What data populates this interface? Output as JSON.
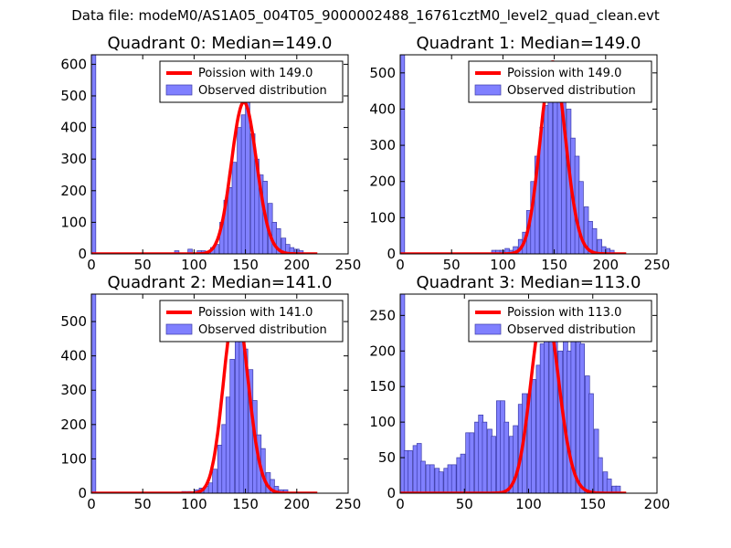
{
  "figure_title": "Data file: modeM0/AS1A05_004T05_9000002488_16761cztM0_level2_quad_clean.evt",
  "colors": {
    "bar_fill": "#8080ff",
    "bar_edge": "#3a3aa8",
    "poisson_line": "#ff0000",
    "axes": "#000000"
  },
  "chart_data": [
    {
      "type": "bar",
      "title": "Quadrant 0: Median=149.0",
      "xlim": [
        0,
        250
      ],
      "ylim": [
        0,
        630
      ],
      "xticks": [
        0,
        50,
        100,
        150,
        200,
        250
      ],
      "yticks": [
        0,
        100,
        200,
        300,
        400,
        500,
        600
      ],
      "bin_width": 4.3,
      "legend": [
        "Poission with 149.0",
        "Observed distribution"
      ],
      "median": 149.0,
      "peak": 480,
      "bins": [
        [
          0,
          630
        ],
        [
          81,
          10
        ],
        [
          94,
          15
        ],
        [
          103,
          10
        ],
        [
          107,
          10
        ],
        [
          112,
          5
        ],
        [
          116,
          20
        ],
        [
          120,
          30
        ],
        [
          125,
          100
        ],
        [
          129,
          170
        ],
        [
          133,
          210
        ],
        [
          137,
          290
        ],
        [
          142,
          400
        ],
        [
          146,
          440
        ],
        [
          150,
          480
        ],
        [
          155,
          380
        ],
        [
          159,
          300
        ],
        [
          163,
          250
        ],
        [
          167,
          230
        ],
        [
          172,
          160
        ],
        [
          176,
          100
        ],
        [
          180,
          80
        ],
        [
          185,
          50
        ],
        [
          189,
          30
        ],
        [
          193,
          20
        ],
        [
          198,
          15
        ],
        [
          202,
          10
        ]
      ]
    },
    {
      "type": "bar",
      "title": "Quadrant 1: Median=149.0",
      "xlim": [
        0,
        250
      ],
      "ylim": [
        0,
        550
      ],
      "xticks": [
        0,
        50,
        100,
        150,
        200,
        250
      ],
      "yticks": [
        0,
        100,
        200,
        300,
        400,
        500
      ],
      "bin_width": 4.3,
      "legend": [
        "Poission with 149.0",
        "Observed distribution"
      ],
      "median": 149.0,
      "peak": 530,
      "bins": [
        [
          0,
          550
        ],
        [
          89,
          10
        ],
        [
          93,
          10
        ],
        [
          97,
          10
        ],
        [
          102,
          15
        ],
        [
          106,
          10
        ],
        [
          110,
          20
        ],
        [
          115,
          40
        ],
        [
          119,
          60
        ],
        [
          123,
          120
        ],
        [
          127,
          200
        ],
        [
          131,
          270
        ],
        [
          136,
          350
        ],
        [
          140,
          410
        ],
        [
          144,
          460
        ],
        [
          149,
          500
        ],
        [
          153,
          460
        ],
        [
          157,
          420
        ],
        [
          162,
          400
        ],
        [
          166,
          320
        ],
        [
          170,
          270
        ],
        [
          174,
          200
        ],
        [
          179,
          130
        ],
        [
          183,
          90
        ],
        [
          187,
          70
        ],
        [
          192,
          40
        ],
        [
          196,
          20
        ],
        [
          200,
          15
        ],
        [
          204,
          10
        ]
      ]
    },
    {
      "type": "bar",
      "title": "Quadrant 2: Median=141.0",
      "xlim": [
        0,
        250
      ],
      "ylim": [
        0,
        580
      ],
      "xticks": [
        0,
        50,
        100,
        150,
        200,
        250
      ],
      "yticks": [
        0,
        100,
        200,
        300,
        400,
        500
      ],
      "bin_width": 4.3,
      "legend": [
        "Poission with 141.0",
        "Observed distribution"
      ],
      "median": 141.0,
      "peak": 545,
      "bins": [
        [
          0,
          580
        ],
        [
          88,
          5
        ],
        [
          93,
          5
        ],
        [
          101,
          10
        ],
        [
          105,
          15
        ],
        [
          110,
          20
        ],
        [
          114,
          30
        ],
        [
          118,
          70
        ],
        [
          123,
          140
        ],
        [
          127,
          200
        ],
        [
          131,
          280
        ],
        [
          135,
          390
        ],
        [
          140,
          470
        ],
        [
          144,
          500
        ],
        [
          148,
          420
        ],
        [
          153,
          360
        ],
        [
          157,
          270
        ],
        [
          161,
          170
        ],
        [
          165,
          130
        ],
        [
          170,
          60
        ],
        [
          174,
          40
        ],
        [
          178,
          20
        ],
        [
          182,
          10
        ],
        [
          187,
          10
        ]
      ]
    },
    {
      "type": "bar",
      "title": "Quadrant 3: Median=113.0",
      "xlim": [
        0,
        200
      ],
      "ylim": [
        0,
        280
      ],
      "xticks": [
        0,
        50,
        100,
        150,
        200
      ],
      "yticks": [
        0,
        50,
        100,
        150,
        200,
        250
      ],
      "bin_width": 3.5,
      "legend": [
        "Poission with 113.0",
        "Observed distribution"
      ],
      "median": 113.0,
      "peak": 265,
      "bins": [
        [
          0,
          280
        ],
        [
          3,
          60
        ],
        [
          6,
          60
        ],
        [
          10,
          67
        ],
        [
          13,
          70
        ],
        [
          16,
          45
        ],
        [
          20,
          40
        ],
        [
          23,
          40
        ],
        [
          27,
          35
        ],
        [
          30,
          30
        ],
        [
          34,
          35
        ],
        [
          37,
          40
        ],
        [
          40,
          40
        ],
        [
          44,
          50
        ],
        [
          47,
          55
        ],
        [
          51,
          85
        ],
        [
          54,
          85
        ],
        [
          58,
          100
        ],
        [
          61,
          110
        ],
        [
          64,
          100
        ],
        [
          68,
          90
        ],
        [
          71,
          80
        ],
        [
          75,
          130
        ],
        [
          78,
          130
        ],
        [
          81,
          100
        ],
        [
          85,
          80
        ],
        [
          88,
          95
        ],
        [
          92,
          125
        ],
        [
          95,
          140
        ],
        [
          99,
          140
        ],
        [
          102,
          160
        ],
        [
          106,
          180
        ],
        [
          109,
          210
        ],
        [
          112,
          250
        ],
        [
          116,
          255
        ],
        [
          119,
          220
        ],
        [
          123,
          200
        ],
        [
          127,
          265
        ],
        [
          130,
          200
        ],
        [
          133,
          265
        ],
        [
          137,
          240
        ],
        [
          140,
          210
        ],
        [
          144,
          165
        ],
        [
          147,
          140
        ],
        [
          151,
          90
        ],
        [
          154,
          50
        ],
        [
          158,
          30
        ],
        [
          161,
          20
        ],
        [
          165,
          10
        ],
        [
          168,
          10
        ]
      ]
    }
  ]
}
